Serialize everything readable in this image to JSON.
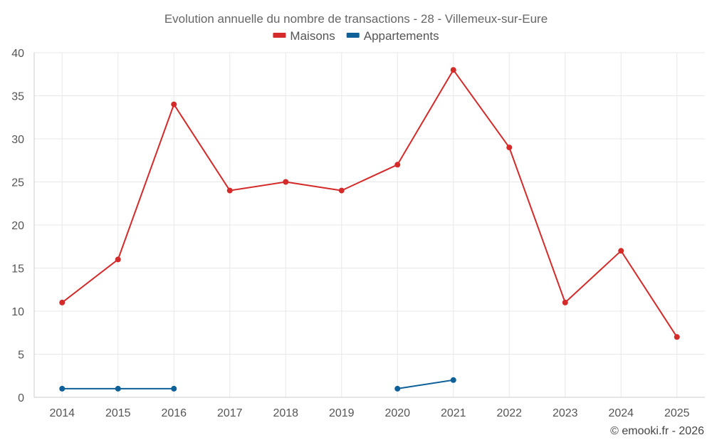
{
  "chart_data": {
    "type": "line",
    "title": "Evolution annuelle du nombre de transactions - 28 - Villemeux-sur-Eure",
    "categories": [
      "2014",
      "2015",
      "2016",
      "2017",
      "2018",
      "2019",
      "2020",
      "2021",
      "2022",
      "2023",
      "2024",
      "2025"
    ],
    "ylim": [
      0,
      40
    ],
    "yticks": [
      0,
      5,
      10,
      15,
      20,
      25,
      30,
      35,
      40
    ],
    "grid": true,
    "legend_position": "top-center",
    "series": [
      {
        "name": "Maisons",
        "color": "#d42a2a",
        "values": [
          11,
          16,
          34,
          24,
          25,
          24,
          27,
          38,
          29,
          11,
          17,
          7
        ]
      },
      {
        "name": "Appartements",
        "color": "#0e6198",
        "values": [
          1,
          1,
          1,
          null,
          null,
          null,
          1,
          2,
          null,
          null,
          null,
          null
        ]
      }
    ]
  },
  "credit": "© emooki.fr - 2026"
}
